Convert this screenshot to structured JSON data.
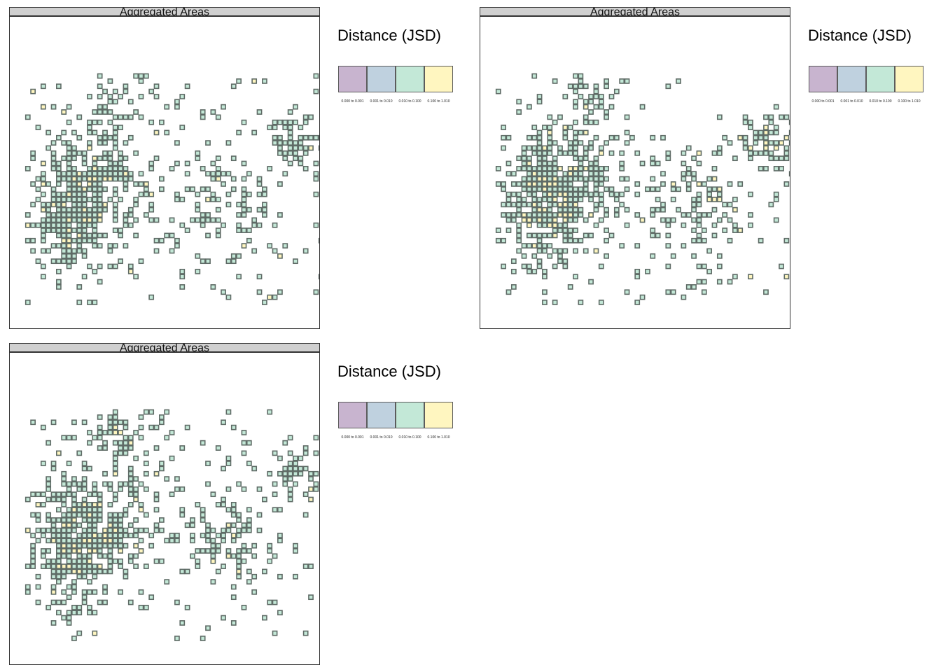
{
  "chart_data": [
    {
      "type": "heatmap",
      "title": "Aggregated Areas",
      "legend": {
        "title": "Distance (JSD)",
        "position": "right",
        "classes": [
          {
            "label": "0.000 to 0.001",
            "color": "#c8b4cf"
          },
          {
            "label": "0.001 to 0.010",
            "color": "#bfd1df"
          },
          {
            "label": "0.010 to 0.100",
            "color": "#c3e8d7"
          },
          {
            "label": "0.100 to 1.010",
            "color": "#fff6c0"
          }
        ]
      },
      "cell_border_color": "#5f6b66",
      "dominant_class": "0.010 to 0.100",
      "secondary_class": "0.100 to 1.010"
    },
    {
      "type": "heatmap",
      "title": "Aggregated Areas",
      "legend": {
        "title": "Distance (JSD)",
        "position": "right",
        "classes": [
          {
            "label": "0.000 to 0.001",
            "color": "#c8b4cf"
          },
          {
            "label": "0.001 to 0.010",
            "color": "#bfd1df"
          },
          {
            "label": "0.010 to 0.100",
            "color": "#c3e8d7"
          },
          {
            "label": "0.100 to 1.010",
            "color": "#fff6c0"
          }
        ]
      },
      "cell_border_color": "#5f6b66",
      "dominant_class": "0.010 to 0.100",
      "secondary_class": "0.100 to 1.010"
    },
    {
      "type": "heatmap",
      "title": "Aggregated Areas",
      "legend": {
        "title": "Distance (JSD)",
        "position": "right",
        "classes": [
          {
            "label": "0.000 to 0.001",
            "color": "#c8b4cf"
          },
          {
            "label": "0.001 to 0.010",
            "color": "#bfd1df"
          },
          {
            "label": "0.010 to 0.100",
            "color": "#c3e8d7"
          },
          {
            "label": "0.100 to 1.010",
            "color": "#fff6c0"
          }
        ]
      },
      "cell_border_color": "#5f6b66",
      "dominant_class": "0.010 to 0.100",
      "secondary_class": "0.100 to 1.010"
    }
  ]
}
